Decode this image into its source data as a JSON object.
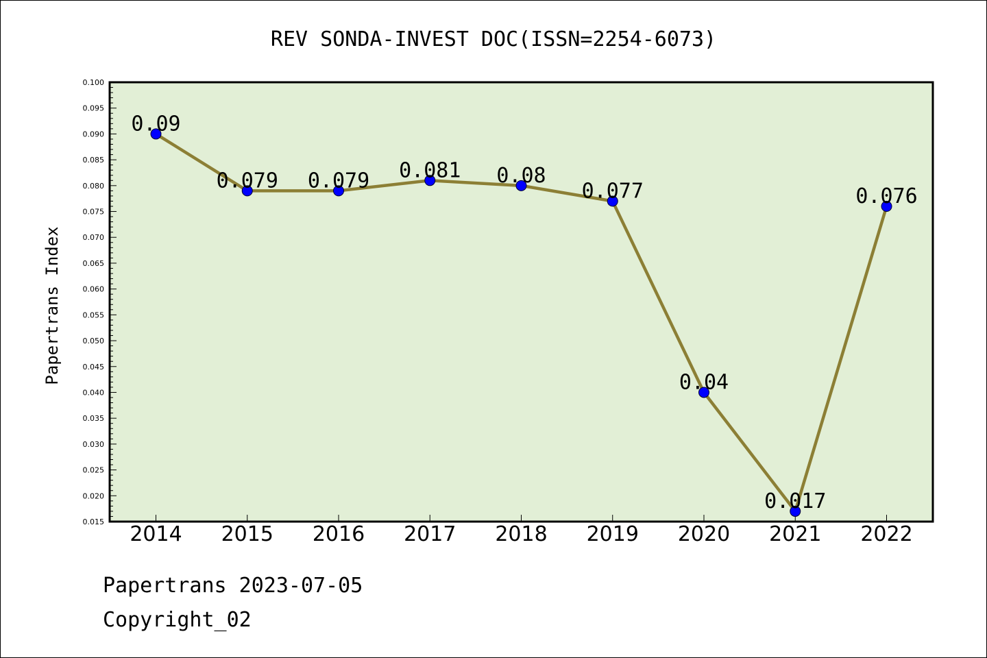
{
  "chart_data": {
    "type": "line",
    "title": "REV SONDA-INVEST DOC(ISSN=2254-6073)",
    "xlabel": "",
    "ylabel": "Papertrans Index",
    "categories": [
      "2014",
      "2015",
      "2016",
      "2017",
      "2018",
      "2019",
      "2020",
      "2021",
      "2022"
    ],
    "values": [
      0.09,
      0.079,
      0.079,
      0.081,
      0.08,
      0.077,
      0.04,
      0.017,
      0.076
    ],
    "data_labels": [
      "0.09",
      "0.079",
      "0.079",
      "0.081",
      "0.08",
      "0.077",
      "0.04",
      "0.017",
      "0.076"
    ],
    "ylim": [
      0.015,
      0.1
    ],
    "yticks": [
      "0.015",
      "0.020",
      "0.025",
      "0.030",
      "0.035",
      "0.040",
      "0.045",
      "0.050",
      "0.055",
      "0.060",
      "0.065",
      "0.070",
      "0.075",
      "0.080",
      "0.085",
      "0.090",
      "0.095",
      "0.100"
    ],
    "grid": false,
    "colors": {
      "plot_background": "#e2efd6",
      "line": "#8c7f35",
      "marker": "#0000ff"
    }
  },
  "footer": {
    "line1": "Papertrans 2023-07-05",
    "line2": "Copyright_02"
  }
}
